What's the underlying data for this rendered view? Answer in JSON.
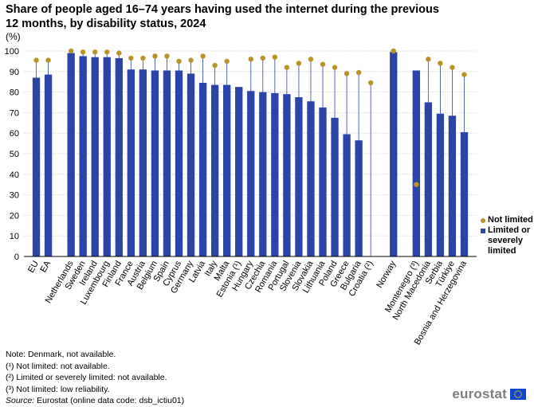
{
  "title": "Share of people aged 16–74 years having used the internet during the previous 12 months, by disability status, 2024",
  "unit": "(%)",
  "legend": {
    "not_limited": "Not limited",
    "limited": "Limited or severely limited"
  },
  "notes": [
    "Note: Denmark, not available.",
    "(¹) Not limited: not available.",
    "(²) Limited or severely limited: not available.",
    "(³) Not limited: low reliability."
  ],
  "source_label": "Source:",
  "source_text": " Eurostat (online data code: dsb_ictiu01)",
  "logo": "eurostat",
  "colors": {
    "bar": "#2b44a7",
    "dot": "#b89428",
    "grid": "#cfcfcf",
    "axis": "#000000"
  },
  "chart_data": {
    "type": "bar",
    "ylim": [
      0,
      100
    ],
    "yticks": [
      0,
      10,
      20,
      30,
      40,
      50,
      60,
      70,
      80,
      90,
      100
    ],
    "categories": [
      "EU",
      "EA",
      "Netherlands",
      "Sweden",
      "Ireland",
      "Luxembourg",
      "Finland",
      "France",
      "Austria",
      "Belgium",
      "Spain",
      "Cyprus",
      "Germany",
      "Latvia",
      "Italy",
      "Malta",
      "Estonia (¹)",
      "Hungary",
      "Czechia",
      "Romania",
      "Portugal",
      "Slovenia",
      "Slovakia",
      "Lithuania",
      "Poland",
      "Greece",
      "Bulgaria",
      "Croatia (²)",
      "Norway",
      "Montenegro (³)",
      "North Macedonia",
      "Serbia",
      "Türkiye",
      "Bosnia and Herzegovina"
    ],
    "groups": [
      2,
      26,
      1,
      5
    ],
    "series": [
      {
        "name": "Limited or severely limited",
        "kind": "bar",
        "values": [
          87,
          88.5,
          99,
          97.5,
          97,
          97,
          96.5,
          91,
          91,
          90.5,
          90.5,
          90.5,
          89,
          84.5,
          83.5,
          83.5,
          82.5,
          80.5,
          80,
          79.5,
          79,
          77.5,
          75.5,
          72.5,
          67.5,
          59.5,
          56.5,
          null,
          99.5,
          90.5,
          75,
          69.5,
          68.5,
          60.5
        ]
      },
      {
        "name": "Not limited",
        "kind": "dot",
        "values": [
          95.5,
          95.5,
          100,
          99.5,
          99.5,
          99.5,
          99,
          96.5,
          96.5,
          97.5,
          97.5,
          95,
          95.5,
          97.5,
          93,
          95,
          null,
          96,
          96.5,
          97,
          92,
          94,
          96,
          93.5,
          92,
          89,
          89.5,
          84.5,
          100,
          35,
          96,
          94,
          92,
          88.5
        ]
      }
    ]
  }
}
